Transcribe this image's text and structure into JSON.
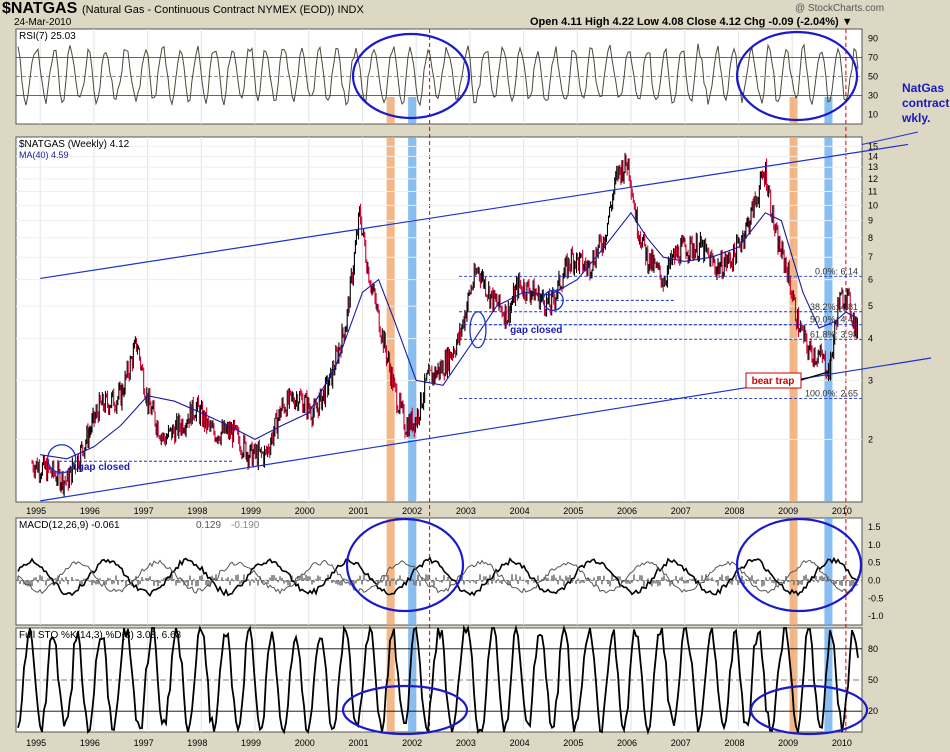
{
  "header": {
    "symbol": "$NATGAS",
    "description": "(Natural Gas - Continuous Contract NYMEX (EOD))  INDX",
    "date": "24-Mar-2010",
    "ohlc": "Open 4.11  High 4.22  Low 4.08  Close 4.12  Chg -0.09 (-2.04%) ▼",
    "brand": "@ StockCharts.com"
  },
  "colors": {
    "background": "#ddd8c4",
    "panel": "#ffffff",
    "price_up": "#000000",
    "price_down": "#cc0033",
    "ma": "#1a1aa0",
    "trend": "#1a33cc",
    "orange_band": "#f0a060",
    "blue_band": "#60a8ec",
    "red_dash": "#dd0000"
  },
  "chart_data": [
    {
      "type": "line",
      "title": "RSI(7) 25.03",
      "y_ticks": [
        "90",
        "70",
        "50",
        "30",
        "10"
      ],
      "ylim": [
        0,
        100
      ],
      "levels": [
        70,
        30
      ]
    },
    {
      "type": "line",
      "title": "$NATGAS (Weekly) 4.12",
      "legend": [
        "$NATGAS (Weekly) 4.12",
        "MA(40) 4.59"
      ],
      "scale": "log",
      "ylim": [
        1.3,
        16
      ],
      "y_ticks": [
        "15",
        "14",
        "13",
        "12",
        "11",
        "10",
        "9",
        "8",
        "7",
        "6",
        "5",
        "4",
        "3",
        "2"
      ],
      "x_ticks": [
        "1995",
        "1996",
        "1997",
        "1998",
        "1999",
        "2000",
        "2001",
        "2002",
        "2003",
        "2004",
        "2005",
        "2006",
        "2007",
        "2008",
        "2009",
        "2010"
      ],
      "series": [
        {
          "name": "$NATGAS (Weekly) 4.12",
          "x": [
            1994.85,
            1995.2,
            1995.5,
            1995.8,
            1996.1,
            1996.5,
            1996.8,
            1997.0,
            1997.3,
            1997.6,
            1997.9,
            1998.2,
            1998.6,
            1998.9,
            1999.2,
            1999.5,
            1999.8,
            2000.1,
            2000.4,
            2000.7,
            2000.95,
            2001.1,
            2001.3,
            2001.6,
            2001.8,
            2002.0,
            2002.2,
            2002.5,
            2002.8,
            2003.0,
            2003.15,
            2003.4,
            2003.7,
            2003.9,
            2004.2,
            2004.5,
            2004.7,
            2004.9,
            2005.2,
            2005.5,
            2005.75,
            2005.95,
            2006.1,
            2006.3,
            2006.6,
            2006.8,
            2007.0,
            2007.3,
            2007.6,
            2007.9,
            2008.2,
            2008.5,
            2008.7,
            2008.9,
            2009.1,
            2009.3,
            2009.55,
            2009.7,
            2009.85,
            2010.0,
            2010.1,
            2010.22
          ],
          "values": [
            1.7,
            1.6,
            1.5,
            1.9,
            2.5,
            2.7,
            3.9,
            2.6,
            2.0,
            2.2,
            2.5,
            2.1,
            2.1,
            1.8,
            1.8,
            2.5,
            2.7,
            2.4,
            3.0,
            4.5,
            9.5,
            6.5,
            4.6,
            2.8,
            2.2,
            2.3,
            3.0,
            3.3,
            4.0,
            5.5,
            6.5,
            5.3,
            4.7,
            5.8,
            5.5,
            5.0,
            6.0,
            7.0,
            6.5,
            8.0,
            12.5,
            13.5,
            9.0,
            7.0,
            6.0,
            7.0,
            7.5,
            7.5,
            6.5,
            7.0,
            9.0,
            12.8,
            8.0,
            6.5,
            4.5,
            3.7,
            3.5,
            3.2,
            5.0,
            5.5,
            4.8,
            4.12
          ]
        },
        {
          "name": "MA(40) 4.59",
          "x": [
            1995.0,
            1995.5,
            1996.0,
            1996.5,
            1997.0,
            1997.5,
            1998.0,
            1998.5,
            1999.0,
            1999.5,
            2000.0,
            2000.5,
            2001.0,
            2001.3,
            2001.6,
            2002.0,
            2002.5,
            2003.0,
            2003.5,
            2004.0,
            2004.5,
            2005.0,
            2005.5,
            2006.0,
            2006.3,
            2006.6,
            2007.0,
            2007.5,
            2008.0,
            2008.5,
            2008.8,
            2009.2,
            2009.5,
            2009.8,
            2010.0,
            2010.22
          ],
          "values": [
            1.8,
            1.75,
            1.9,
            2.2,
            2.7,
            2.6,
            2.4,
            2.2,
            2.0,
            2.2,
            2.4,
            3.3,
            5.5,
            6.0,
            4.5,
            3.0,
            2.9,
            3.8,
            5.0,
            5.5,
            5.4,
            6.0,
            7.5,
            9.5,
            8.0,
            7.0,
            6.8,
            7.0,
            7.5,
            9.5,
            9.0,
            5.5,
            4.3,
            4.5,
            4.8,
            4.59
          ]
        }
      ],
      "retracements": [
        {
          "label": "0.0%: 6.14",
          "value": 6.14
        },
        {
          "label": "38.2%: 4.81",
          "value": 4.81
        },
        {
          "label": "50.0%: 4.40",
          "value": 4.4
        },
        {
          "label": "61.8%: 3.98",
          "value": 3.98
        },
        {
          "label": "100.0%: 2.65",
          "value": 2.65
        }
      ],
      "annotations": {
        "gap1": "gap closed",
        "gap2": "gap closed",
        "bear_trap": "bear trap",
        "note": "NatGas contract wkly."
      }
    },
    {
      "type": "line",
      "title": "MACD(12,26,9) -0.061, 0.129, -0.190",
      "legend": [
        "MACD(12,26,9) -0.061",
        "0.129",
        "-0.190"
      ],
      "y_ticks": [
        "1.5",
        "1.0",
        "0.5",
        "0.0",
        "-0.5",
        "-1.0"
      ],
      "ylim": [
        -1.25,
        1.75
      ]
    },
    {
      "type": "line",
      "title": "Full STO %K(14,3) %D(3) 3.08, 6.68",
      "y_ticks": [
        "80",
        "50",
        "20"
      ],
      "ylim": [
        0,
        100
      ],
      "levels": [
        80,
        50,
        20
      ]
    }
  ]
}
